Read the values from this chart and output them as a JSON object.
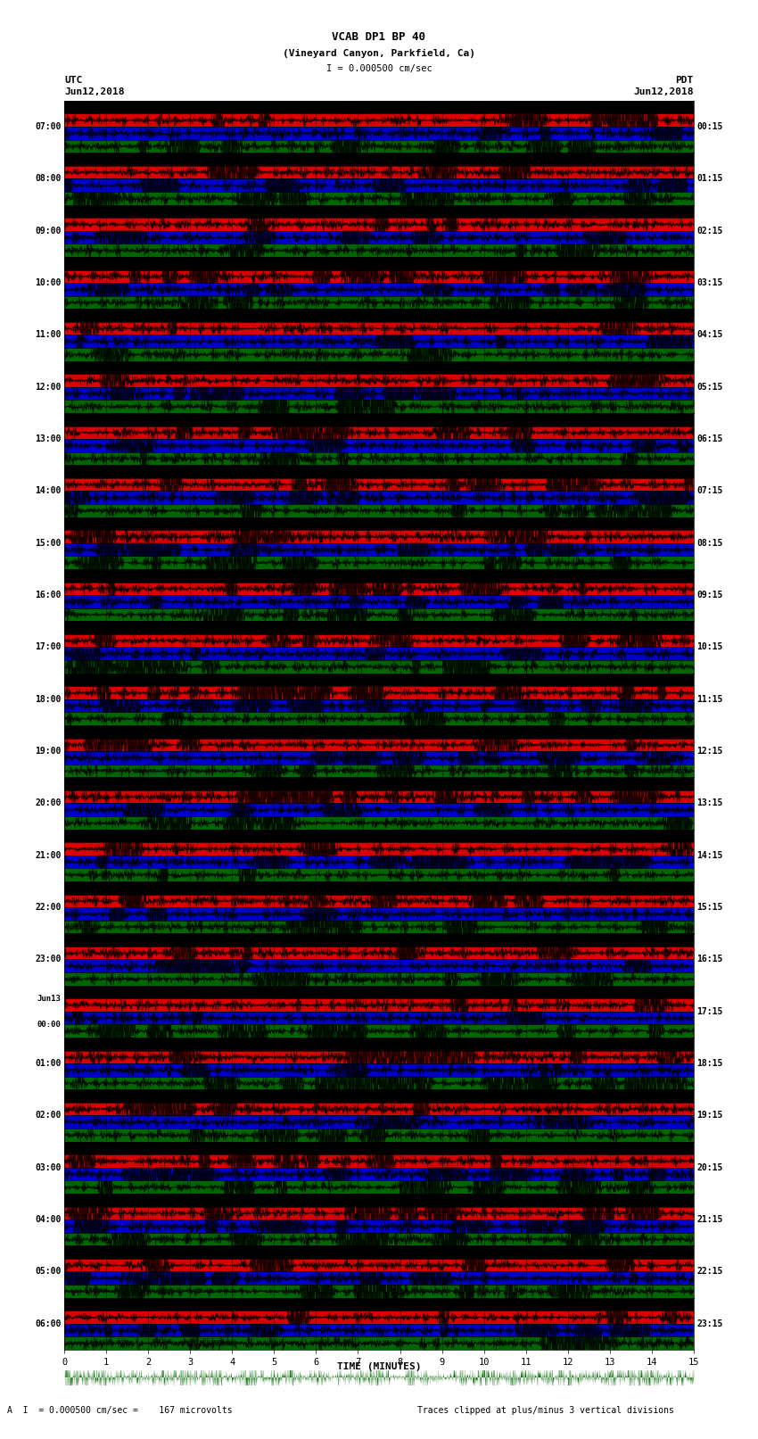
{
  "title_line1": "VCAB DP1 BP 40",
  "title_line2": "(Vineyard Canyon, Parkfield, Ca)",
  "scale_label": "I = 0.000500 cm/sec",
  "left_date": "Jun12,2018",
  "right_date": "Jun12,2018",
  "left_tz": "UTC",
  "right_tz": "PDT",
  "bottom_label": "TIME (MINUTES)",
  "bottom_note1": "A  I  = 0.000500 cm/sec =    167 microvolts",
  "bottom_note2": "Traces clipped at plus/minus 3 vertical divisions",
  "utc_times": [
    "07:00",
    "08:00",
    "09:00",
    "10:00",
    "11:00",
    "12:00",
    "13:00",
    "14:00",
    "15:00",
    "16:00",
    "17:00",
    "18:00",
    "19:00",
    "20:00",
    "21:00",
    "22:00",
    "23:00",
    "Jun13\n00:00",
    "01:00",
    "02:00",
    "03:00",
    "04:00",
    "05:00",
    "06:00"
  ],
  "pdt_times": [
    "00:15",
    "01:15",
    "02:15",
    "03:15",
    "04:15",
    "05:15",
    "06:15",
    "07:15",
    "08:15",
    "09:15",
    "10:15",
    "11:15",
    "12:15",
    "13:15",
    "14:15",
    "15:15",
    "16:15",
    "17:15",
    "18:15",
    "19:15",
    "20:15",
    "21:15",
    "22:15",
    "23:15"
  ],
  "n_rows": 24,
  "n_points": 3600,
  "x_min": 0,
  "x_max": 15,
  "x_ticks": [
    0,
    1,
    2,
    3,
    4,
    5,
    6,
    7,
    8,
    9,
    10,
    11,
    12,
    13,
    14,
    15
  ],
  "colors": {
    "red": "#dd0000",
    "green": "#006600",
    "blue": "#0000cc",
    "black": "#000000",
    "white": "#ffffff",
    "background": "#ffffff",
    "grid_line": "#888888"
  },
  "fig_width": 8.5,
  "fig_height": 16.13,
  "dpi": 100
}
